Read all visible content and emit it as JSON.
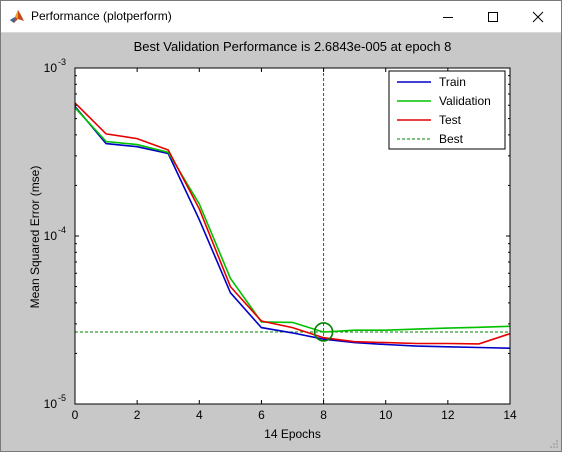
{
  "window": {
    "title": "Performance (plotperform)"
  },
  "colors": {
    "train": "#0000c8",
    "validation": "#00c000",
    "test": "#e60000",
    "best": "#008000",
    "figure_background": "#c8c8c8",
    "axes_background": "#ffffff"
  },
  "chart_data": {
    "type": "line",
    "title": "Best Validation Performance is 2.6843e-005 at epoch 8",
    "xlabel": "14 Epochs",
    "ylabel": "Mean Squared Error  (mse)",
    "xlim": [
      0,
      14
    ],
    "ylim": [
      1e-05,
      0.001
    ],
    "yscale": "log",
    "xticks": [
      "0",
      "2",
      "4",
      "6",
      "8",
      "10",
      "12",
      "14"
    ],
    "yticks": [
      {
        "base": "10",
        "exp": "-5"
      },
      {
        "base": "10",
        "exp": "-4"
      },
      {
        "base": "10",
        "exp": "-3"
      }
    ],
    "legend_position": "top-right",
    "x": [
      0,
      1,
      2,
      3,
      4,
      5,
      6,
      7,
      8,
      9,
      10,
      11,
      12,
      13,
      14
    ],
    "series": [
      {
        "name": "Train",
        "values": [
          0.00059,
          0.000355,
          0.00034,
          0.00031,
          0.000125,
          4.6e-05,
          2.85e-05,
          2.65e-05,
          2.43e-05,
          2.32e-05,
          2.26e-05,
          2.21e-05,
          2.19e-05,
          2.17e-05,
          2.15e-05
        ]
      },
      {
        "name": "Validation",
        "values": [
          0.00058,
          0.000365,
          0.00035,
          0.000315,
          0.000155,
          5.6e-05,
          3.08e-05,
          3.06e-05,
          2.68e-05,
          2.75e-05,
          2.75e-05,
          2.79e-05,
          2.83e-05,
          2.86e-05,
          2.9e-05
        ]
      },
      {
        "name": "Test",
        "values": [
          0.00062,
          0.000405,
          0.00038,
          0.000325,
          0.000145,
          5e-05,
          3.12e-05,
          2.85e-05,
          2.48e-05,
          2.35e-05,
          2.32e-05,
          2.29e-05,
          2.29e-05,
          2.28e-05,
          2.62e-05
        ]
      }
    ],
    "best": {
      "name": "Best",
      "epoch": 8,
      "value": 2.6843e-05
    }
  }
}
